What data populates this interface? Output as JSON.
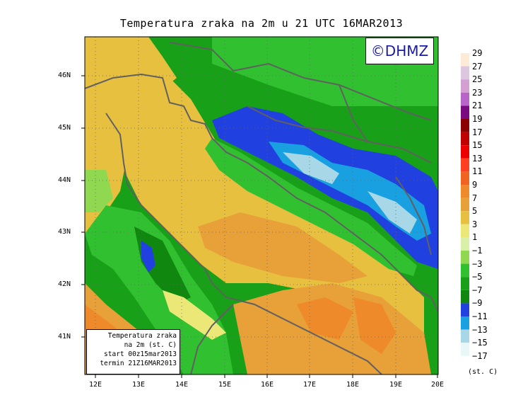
{
  "title": "Temperatura zraka na 2m u 21 UTC 16MAR2013",
  "logo": "©DHMZ",
  "infobox": {
    "line1": "Temperatura zraka",
    "line2": "na 2m (st. C)",
    "line3": "start 00z15mar2013",
    "line4": "termin 21Z16MAR2013"
  },
  "y_axis_labels": [
    "46N",
    "45N",
    "44N",
    "43N",
    "42N",
    "41N"
  ],
  "x_axis_labels": [
    "12E",
    "13E",
    "14E",
    "15E",
    "16E",
    "17E",
    "18E",
    "19E",
    "20E"
  ],
  "legend": {
    "labels": [
      "29",
      "27",
      "25",
      "23",
      "21",
      "19",
      "17",
      "15",
      "13",
      "11",
      "9",
      "7",
      "5",
      "3",
      "1",
      "−1",
      "−3",
      "−5",
      "−7",
      "−9",
      "−11",
      "−13",
      "−15",
      "−17"
    ],
    "colors": [
      "#fdebd8",
      "#dcc7de",
      "#d4a0d4",
      "#b964c8",
      "#7a0a80",
      "#8b0000",
      "#c00000",
      "#ee0000",
      "#ff4020",
      "#f06420",
      "#ef8a2a",
      "#e8a038",
      "#e8c040",
      "#ece878",
      "#d8f0a8",
      "#90d850",
      "#30c030",
      "#18a018",
      "#108810",
      "#2040e0",
      "#18a0e0",
      "#a8d8e8",
      "#e8f8f8",
      "#ffffff"
    ],
    "units": "(st. C)"
  }
}
